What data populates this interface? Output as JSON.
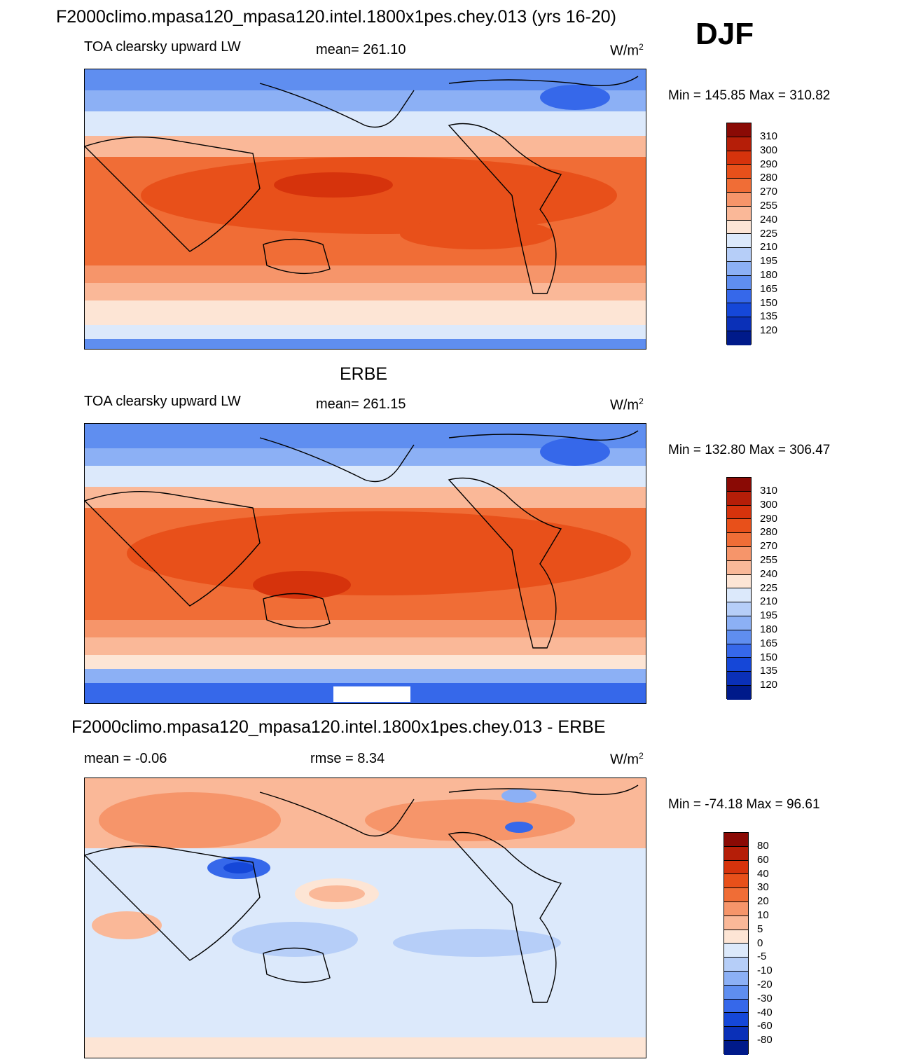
{
  "header": {
    "title": "F2000climo.mpasa120_mpasa120.intel.1800x1pes.chey.013 (yrs 16-20)",
    "season": "DJF"
  },
  "panels": [
    {
      "id": "model",
      "section_title": "",
      "left_label": "TOA clearsky upward LW",
      "center_label": "mean= 261.10",
      "units_base": "W/m",
      "units_exp": "2",
      "minmax": "Min = 145.85 Max = 310.82",
      "colorbar": {
        "labels": [
          "310",
          "300",
          "290",
          "280",
          "270",
          "255",
          "240",
          "225",
          "210",
          "195",
          "180",
          "165",
          "150",
          "135",
          "120"
        ],
        "colors": [
          "#8a0a05",
          "#b51e08",
          "#d6330c",
          "#e8501a",
          "#f06d36",
          "#f6956a",
          "#fab898",
          "#fde5d5",
          "#dce9fb",
          "#b6cef8",
          "#8cb0f5",
          "#5f8ef0",
          "#3668ea",
          "#1547d8",
          "#0a30b8",
          "#001a8a"
        ]
      },
      "map_fill": "warm"
    },
    {
      "id": "obs",
      "section_title": "ERBE",
      "left_label": "TOA clearsky upward LW",
      "center_label": "mean= 261.15",
      "units_base": "W/m",
      "units_exp": "2",
      "minmax": "Min = 132.80 Max = 306.47",
      "colorbar": {
        "labels": [
          "310",
          "300",
          "290",
          "280",
          "270",
          "255",
          "240",
          "225",
          "210",
          "195",
          "180",
          "165",
          "150",
          "135",
          "120"
        ],
        "colors": [
          "#8a0a05",
          "#b51e08",
          "#d6330c",
          "#e8501a",
          "#f06d36",
          "#f6956a",
          "#fab898",
          "#fde5d5",
          "#dce9fb",
          "#b6cef8",
          "#8cb0f5",
          "#5f8ef0",
          "#3668ea",
          "#1547d8",
          "#0a30b8",
          "#001a8a"
        ]
      },
      "map_fill": "warm"
    },
    {
      "id": "diff",
      "section_title": "F2000climo.mpasa120_mpasa120.intel.1800x1pes.chey.013 - ERBE",
      "left_label": "mean =  -0.06",
      "center_label": "rmse =   8.34",
      "units_base": "W/m",
      "units_exp": "2",
      "minmax": "Min = -74.18 Max =  96.61",
      "colorbar": {
        "labels": [
          "80",
          "60",
          "40",
          "30",
          "20",
          "10",
          "5",
          "0",
          "-5",
          "-10",
          "-20",
          "-30",
          "-40",
          "-60",
          "-80"
        ],
        "colors": [
          "#8a0a05",
          "#b51e08",
          "#d6330c",
          "#e8501a",
          "#f06d36",
          "#f6956a",
          "#fab898",
          "#fde5d5",
          "#dce9fb",
          "#b6cef8",
          "#8cb0f5",
          "#5f8ef0",
          "#3668ea",
          "#1547d8",
          "#0a30b8",
          "#001a8a"
        ]
      },
      "map_fill": "diff"
    }
  ]
}
